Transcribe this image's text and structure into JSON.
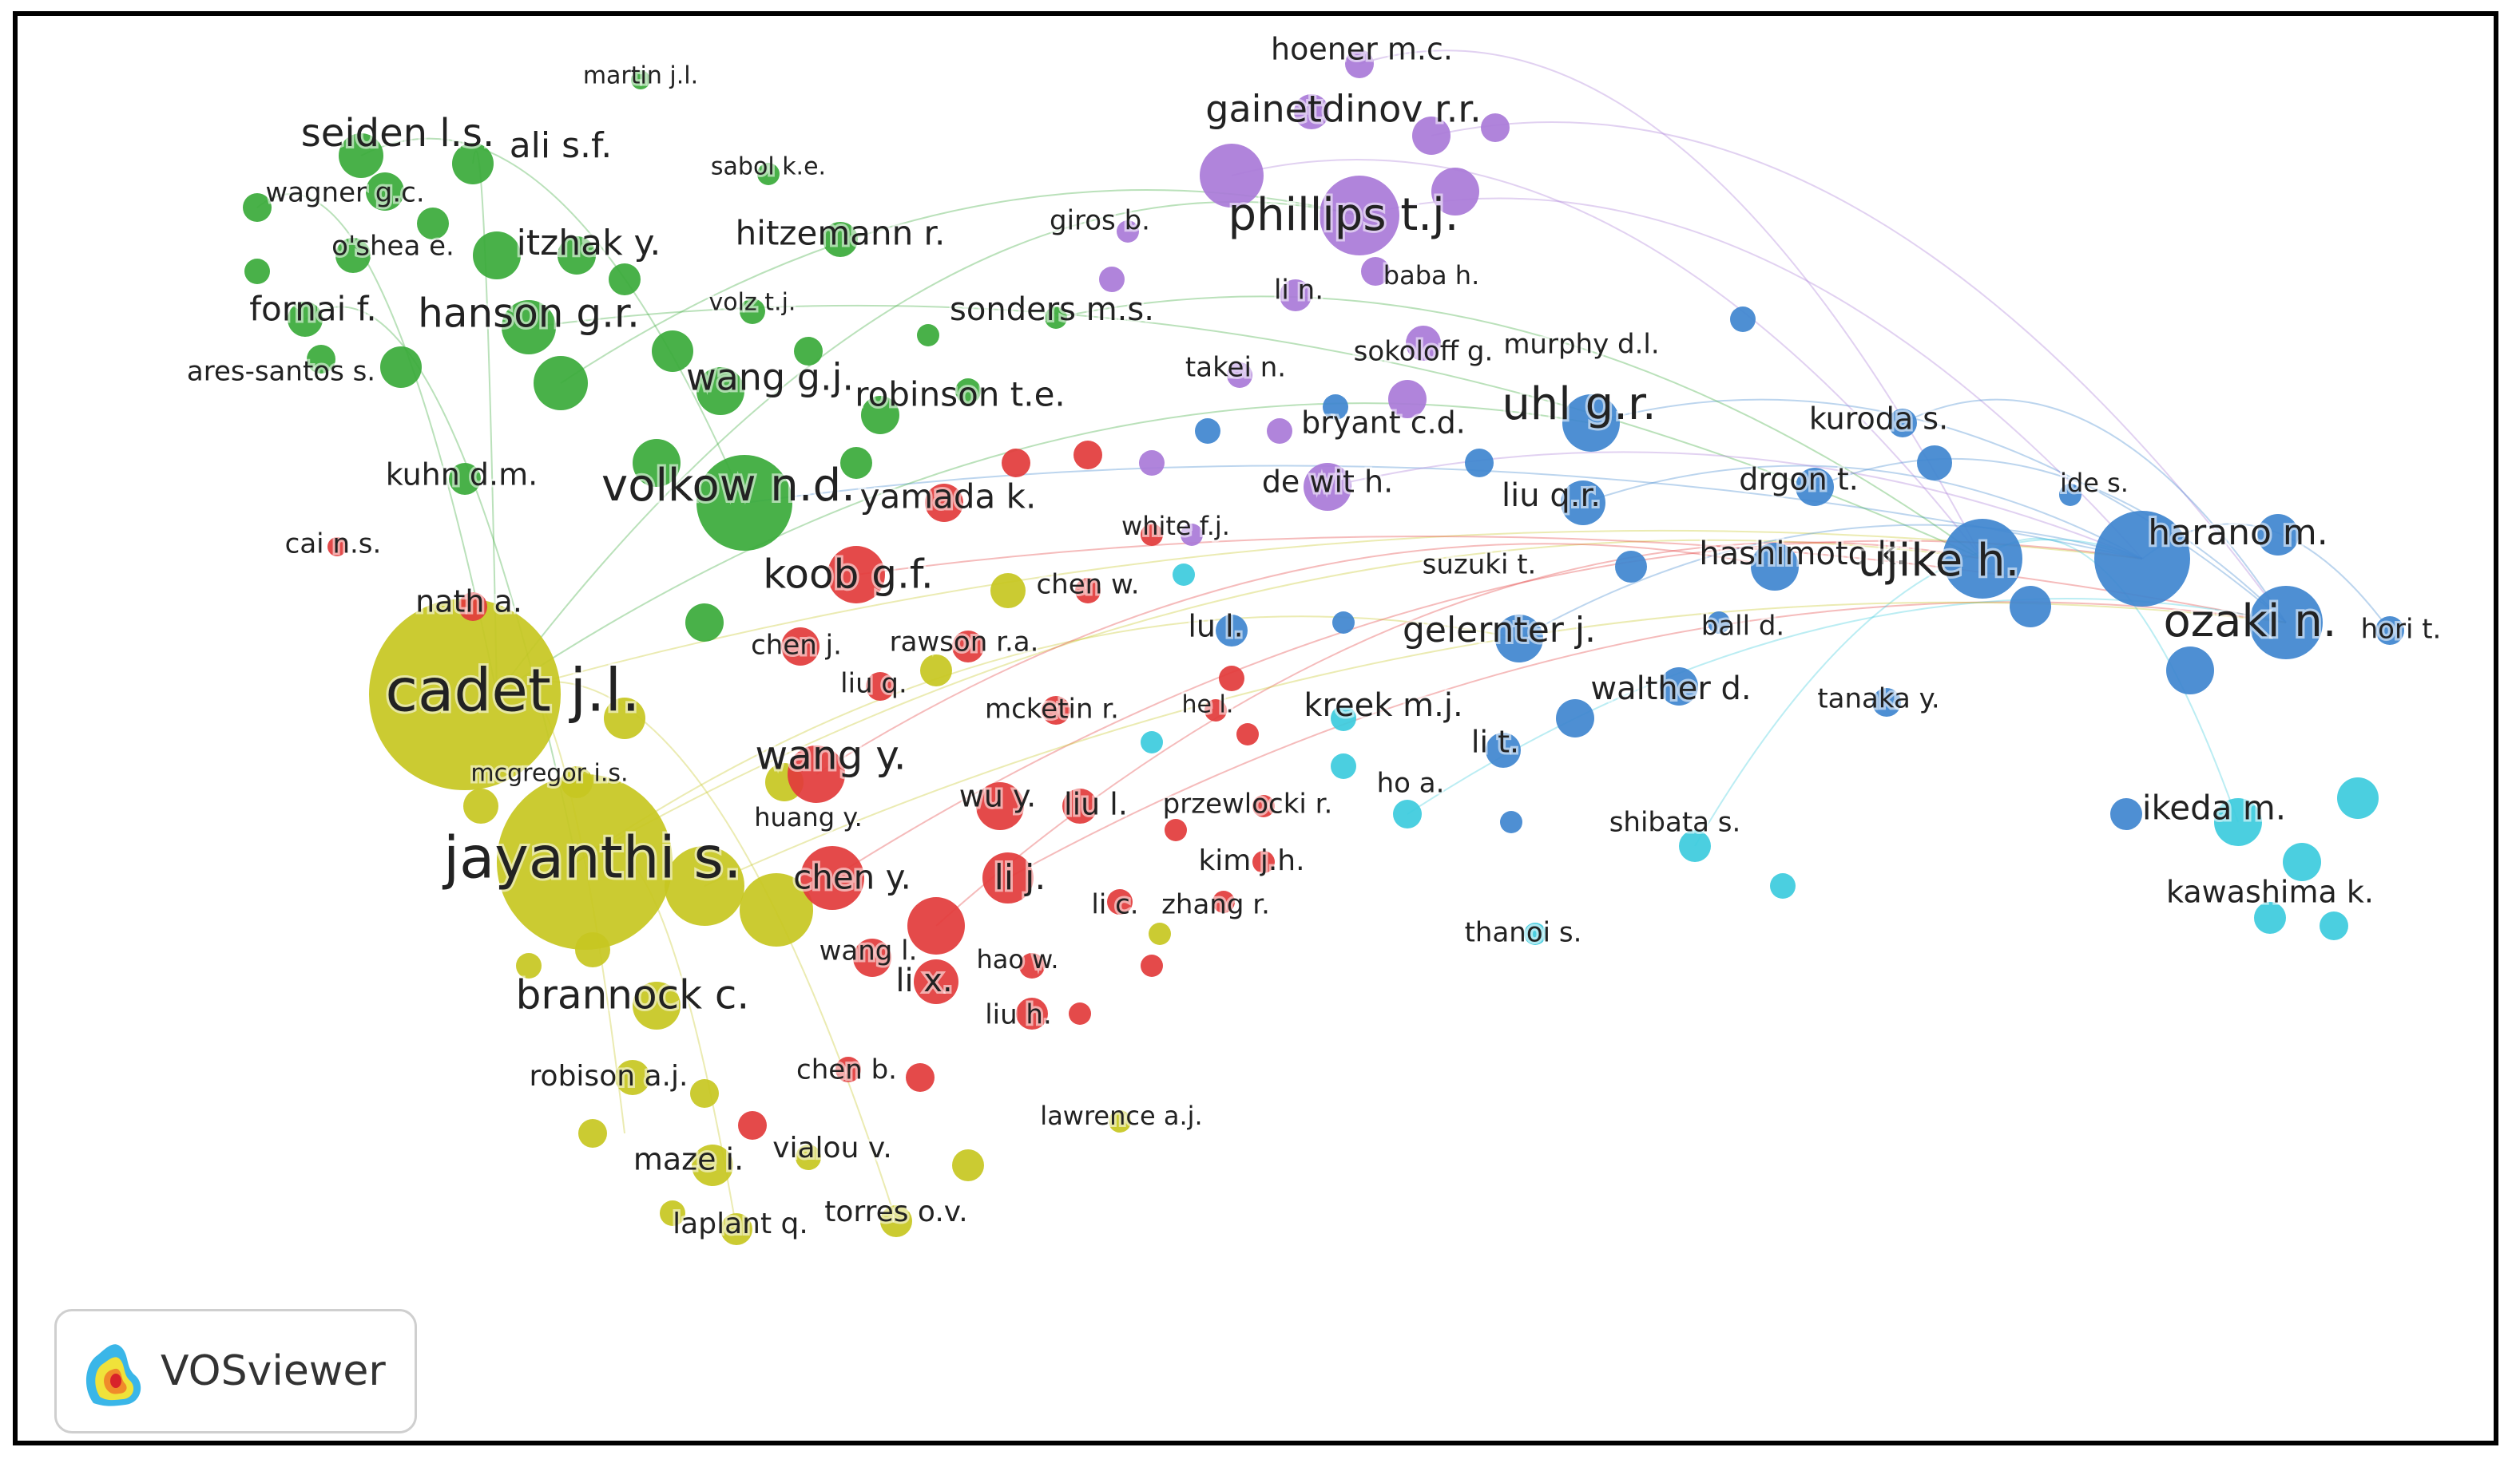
{
  "branding": {
    "app_name": "VOSviewer",
    "logo_icon": "vosviewer-heatmap-logo-icon"
  },
  "colors": {
    "red": "#e23b3b",
    "green": "#3aaa3a",
    "yellow": "#c7c721",
    "purple": "#a97ad8",
    "blue": "#3f86cf",
    "cyan": "#3ccbdd"
  },
  "labels": [
    {
      "text": "cadet j.l.",
      "cluster": "yellow"
    },
    {
      "text": "jayanthi s.",
      "cluster": "yellow"
    },
    {
      "text": "brannock c.",
      "cluster": "yellow"
    },
    {
      "text": "mcgregor i.s.",
      "cluster": "yellow"
    },
    {
      "text": "robison a.j.",
      "cluster": "yellow"
    },
    {
      "text": "maze i.",
      "cluster": "yellow"
    },
    {
      "text": "vialou v.",
      "cluster": "yellow"
    },
    {
      "text": "laplant q.",
      "cluster": "yellow"
    },
    {
      "text": "torres o.v.",
      "cluster": "yellow"
    },
    {
      "text": "lawrence a.j.",
      "cluster": "yellow"
    },
    {
      "text": "seiden l.s.",
      "cluster": "green"
    },
    {
      "text": "ali s.f.",
      "cluster": "green"
    },
    {
      "text": "martin j.l.",
      "cluster": "green"
    },
    {
      "text": "sabol k.e.",
      "cluster": "green"
    },
    {
      "text": "wagner g.c.",
      "cluster": "green"
    },
    {
      "text": "o'shea e.",
      "cluster": "green"
    },
    {
      "text": "itzhak y.",
      "cluster": "green"
    },
    {
      "text": "hitzemann r.",
      "cluster": "green"
    },
    {
      "text": "fornai f.",
      "cluster": "green"
    },
    {
      "text": "hanson g.r.",
      "cluster": "green"
    },
    {
      "text": "volz t.j.",
      "cluster": "green"
    },
    {
      "text": "sonders m.s.",
      "cluster": "green"
    },
    {
      "text": "ares-santos s.",
      "cluster": "green"
    },
    {
      "text": "wang g.j.",
      "cluster": "green"
    },
    {
      "text": "robinson t.e.",
      "cluster": "green"
    },
    {
      "text": "kuhn d.m.",
      "cluster": "green"
    },
    {
      "text": "volkow n.d.",
      "cluster": "green"
    },
    {
      "text": "cai n.s.",
      "cluster": "red"
    },
    {
      "text": "nath a.",
      "cluster": "red"
    },
    {
      "text": "yamada k.",
      "cluster": "red"
    },
    {
      "text": "koob g.f.",
      "cluster": "red"
    },
    {
      "text": "chen w.",
      "cluster": "red"
    },
    {
      "text": "chen j.",
      "cluster": "red"
    },
    {
      "text": "rawson r.a.",
      "cluster": "red"
    },
    {
      "text": "liu q.",
      "cluster": "red"
    },
    {
      "text": "mcketin r.",
      "cluster": "red"
    },
    {
      "text": "he l.",
      "cluster": "red"
    },
    {
      "text": "wang y.",
      "cluster": "red"
    },
    {
      "text": "wu y.",
      "cluster": "red"
    },
    {
      "text": "liu l.",
      "cluster": "red"
    },
    {
      "text": "przewlocki r.",
      "cluster": "red"
    },
    {
      "text": "huang y.",
      "cluster": "red"
    },
    {
      "text": "kim j.h.",
      "cluster": "red"
    },
    {
      "text": "chen y.",
      "cluster": "red"
    },
    {
      "text": "li j.",
      "cluster": "red"
    },
    {
      "text": "li c.",
      "cluster": "red"
    },
    {
      "text": "zhang r.",
      "cluster": "red"
    },
    {
      "text": "wang l.",
      "cluster": "red"
    },
    {
      "text": "hao w.",
      "cluster": "red"
    },
    {
      "text": "li x.",
      "cluster": "red"
    },
    {
      "text": "liu h.",
      "cluster": "red"
    },
    {
      "text": "chen b.",
      "cluster": "red"
    },
    {
      "text": "hoener m.c.",
      "cluster": "purple"
    },
    {
      "text": "gainetdinov r.r.",
      "cluster": "purple"
    },
    {
      "text": "giros b.",
      "cluster": "purple"
    },
    {
      "text": "phillips t.j.",
      "cluster": "purple"
    },
    {
      "text": "li n.",
      "cluster": "purple"
    },
    {
      "text": "baba h.",
      "cluster": "purple"
    },
    {
      "text": "sokoloff g.",
      "cluster": "purple"
    },
    {
      "text": "takei n.",
      "cluster": "purple"
    },
    {
      "text": "bryant c.d.",
      "cluster": "purple"
    },
    {
      "text": "de wit h.",
      "cluster": "purple"
    },
    {
      "text": "white f.j.",
      "cluster": "purple"
    },
    {
      "text": "lu l.",
      "cluster": "blue"
    },
    {
      "text": "murphy d.l.",
      "cluster": "blue"
    },
    {
      "text": "uhl g.r.",
      "cluster": "blue"
    },
    {
      "text": "kuroda s.",
      "cluster": "blue"
    },
    {
      "text": "drgon t.",
      "cluster": "blue"
    },
    {
      "text": "ide s.",
      "cluster": "blue"
    },
    {
      "text": "liu q.r.",
      "cluster": "blue"
    },
    {
      "text": "harano m.",
      "cluster": "blue"
    },
    {
      "text": "hashimoto k.",
      "cluster": "blue"
    },
    {
      "text": "ujike h.",
      "cluster": "blue"
    },
    {
      "text": "suzuki t.",
      "cluster": "blue"
    },
    {
      "text": "gelernter j.",
      "cluster": "blue"
    },
    {
      "text": "ball d.",
      "cluster": "blue"
    },
    {
      "text": "ozaki n.",
      "cluster": "blue"
    },
    {
      "text": "hori t.",
      "cluster": "blue"
    },
    {
      "text": "walther d.",
      "cluster": "blue"
    },
    {
      "text": "tanaka y.",
      "cluster": "blue"
    },
    {
      "text": "li t.",
      "cluster": "blue"
    },
    {
      "text": "kreek m.j.",
      "cluster": "cyan"
    },
    {
      "text": "ho a.",
      "cluster": "cyan"
    },
    {
      "text": "shibata s.",
      "cluster": "cyan"
    },
    {
      "text": "ikeda m.",
      "cluster": "cyan"
    },
    {
      "text": "kawashima k.",
      "cluster": "cyan"
    },
    {
      "text": "thanoi s.",
      "cluster": "cyan"
    }
  ]
}
